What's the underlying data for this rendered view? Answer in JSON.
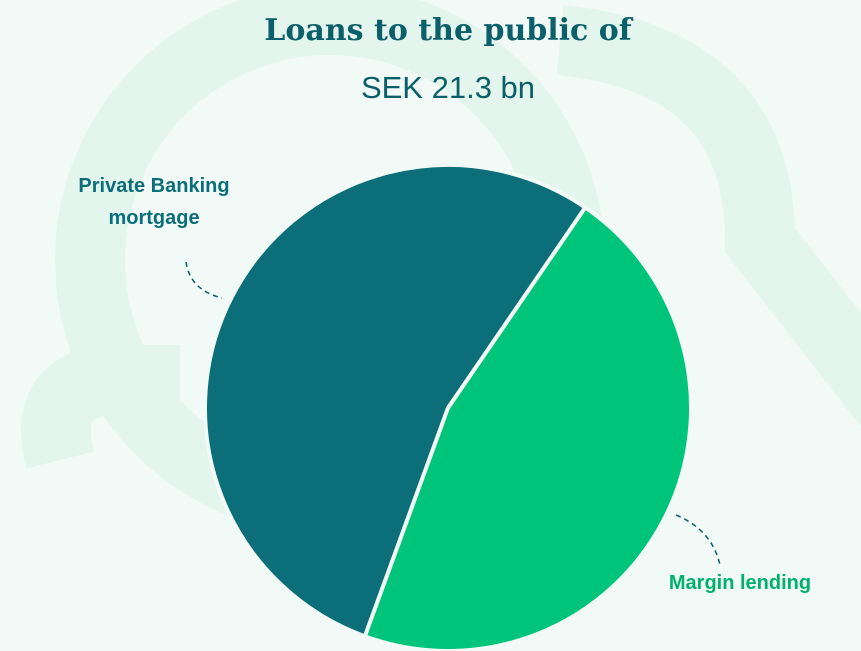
{
  "chart_data": {
    "type": "pie",
    "title": "Loans to the public of",
    "subtitle": "SEK 21.3 bn",
    "categories": [
      "Private Banking mortgage",
      "Margin lending"
    ],
    "values": [
      54,
      46
    ],
    "colors": [
      "#0b6e79",
      "#00c47a"
    ]
  }
}
